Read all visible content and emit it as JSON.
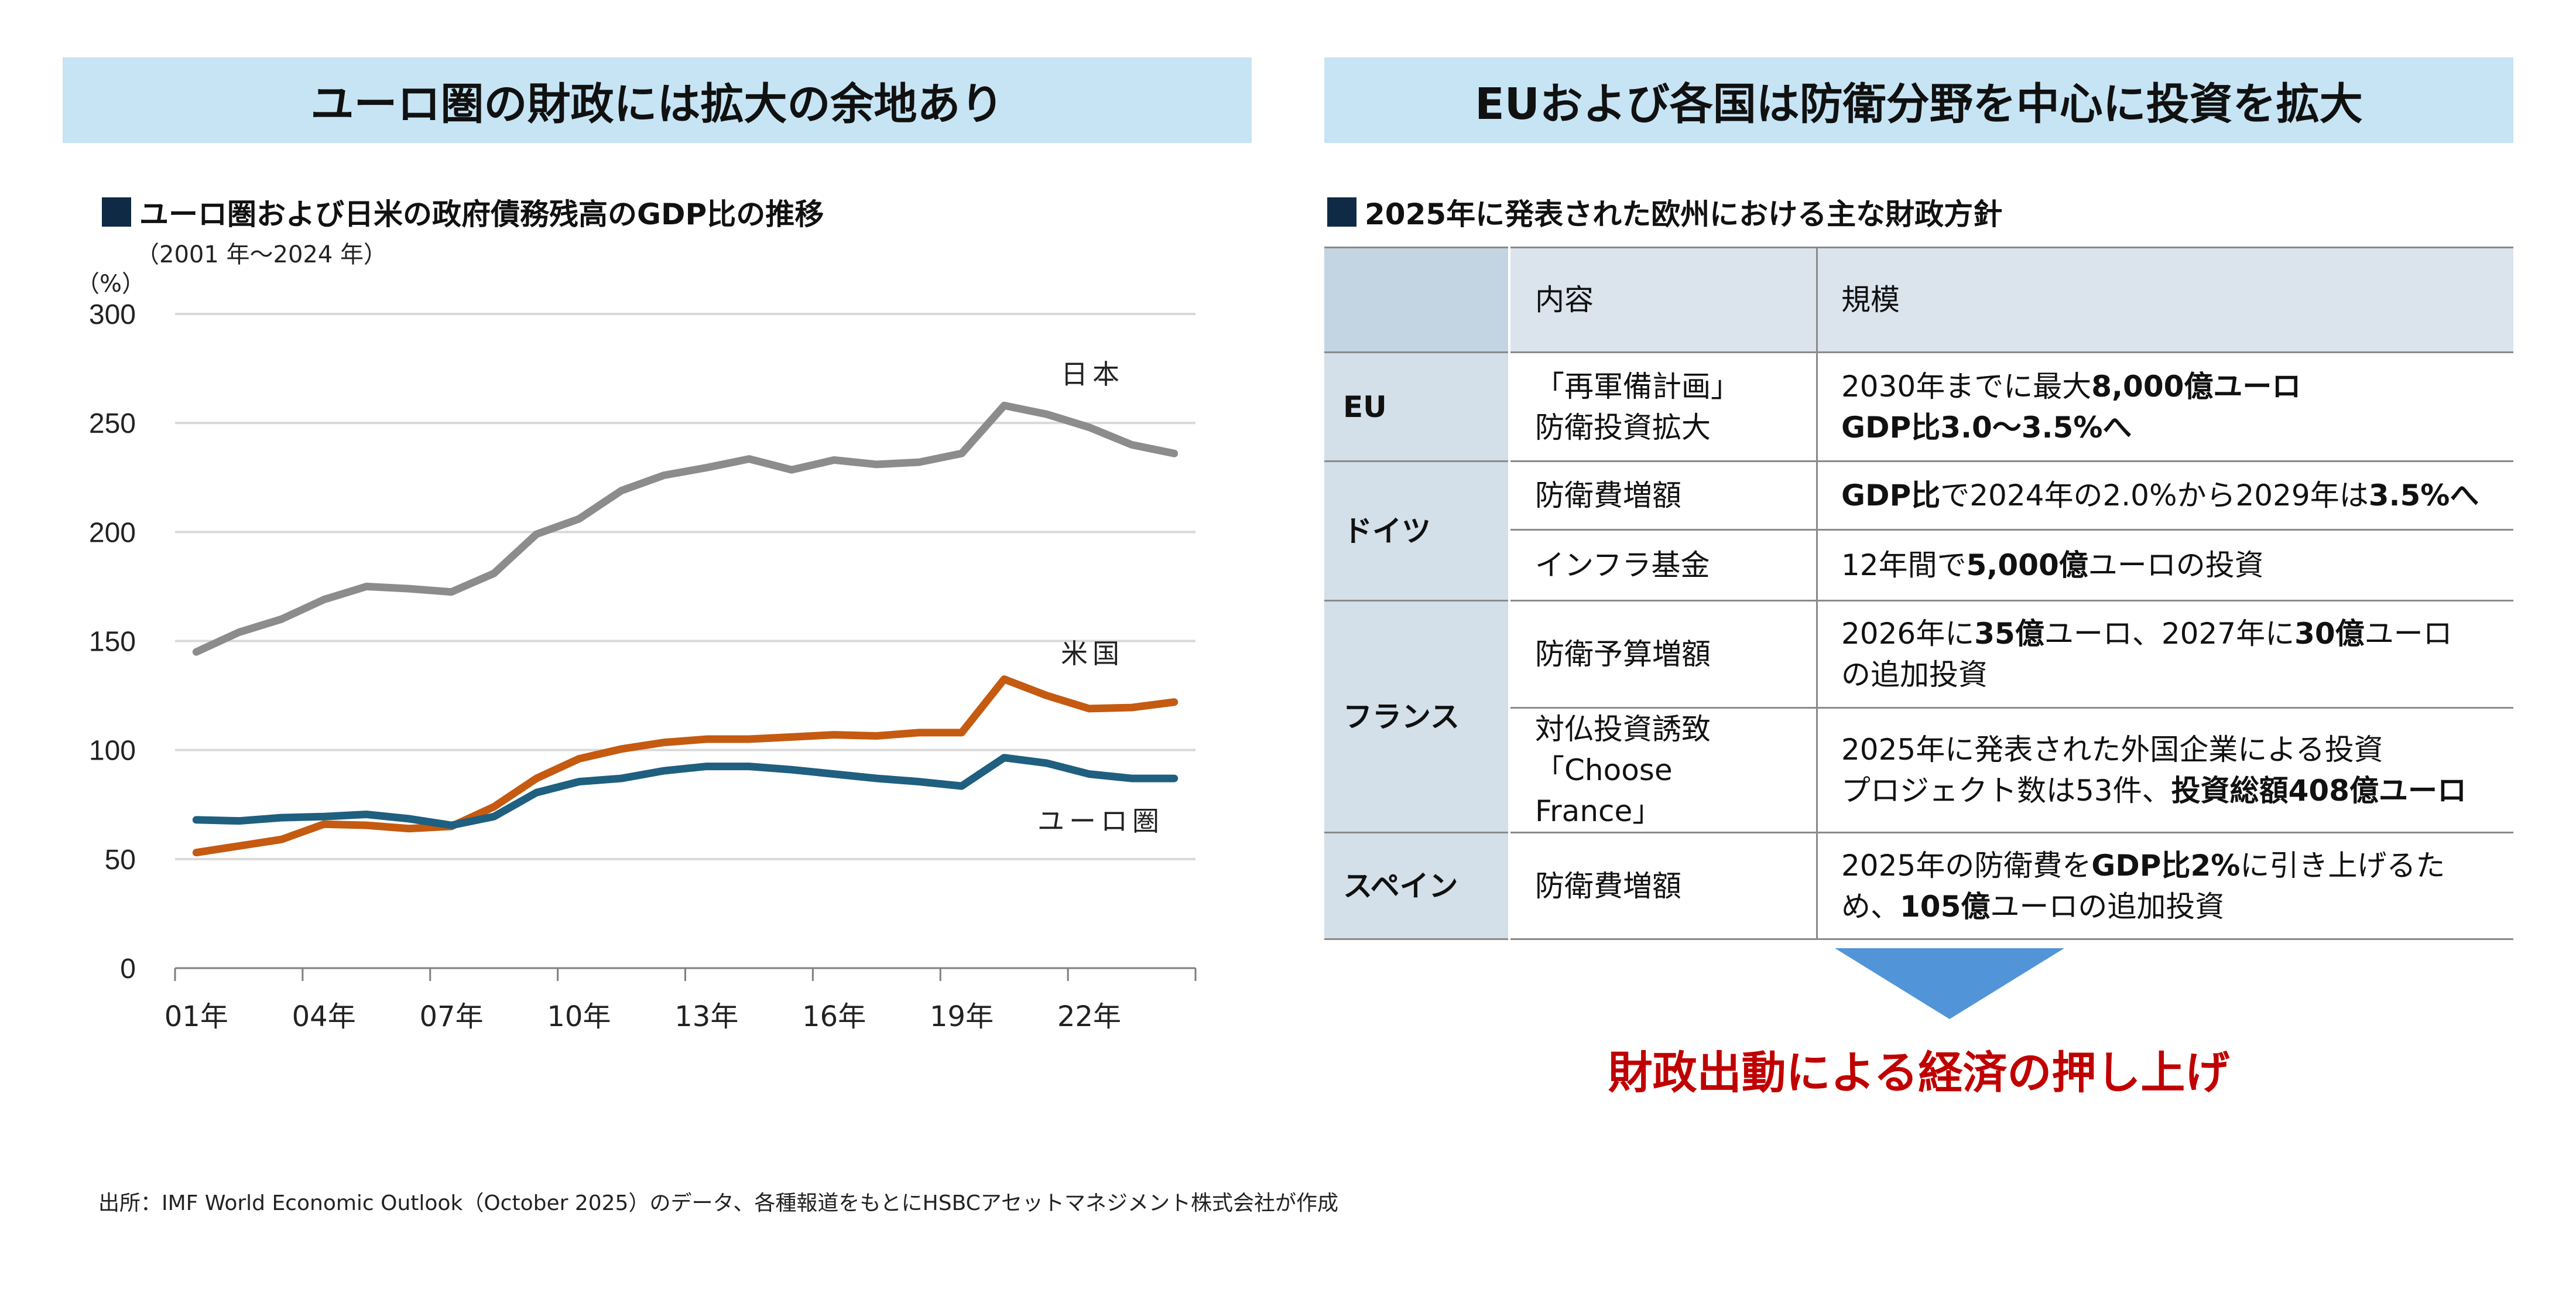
{
  "left": {
    "banner": "ユーロ圏の財政には拡大の余地あり",
    "subtitle": "ユーロ圏および日米の政府債務残高のGDP比の推移",
    "period": "（2001 年～2024 年）"
  },
  "right": {
    "banner": "EUおよび各国は防衛分野を中心に投資を拡大",
    "subtitle": "2025年に発表された欧州における主な財政方針",
    "conclusion": "財政出動による経済の押し上げ"
  },
  "footnote": "出所：IMF World Economic Outlook（October 2025）のデータ、各種報道をもとにHSBCアセットマネジメント株式会社が作成",
  "colors": {
    "japan": "#8c8c8c",
    "us": "#c55a11",
    "euro": "#1f5f7f",
    "banner": "#c6e4f4",
    "arrow": "#5195d8",
    "conclusion": "#c00000"
  },
  "chart_data": {
    "type": "line",
    "unit_label": "（%）",
    "ylim": [
      0,
      300
    ],
    "yticks": [
      0,
      50,
      100,
      150,
      200,
      250,
      300
    ],
    "grid": true,
    "x": [
      2001,
      2002,
      2003,
      2004,
      2005,
      2006,
      2007,
      2008,
      2009,
      2010,
      2011,
      2012,
      2013,
      2014,
      2015,
      2016,
      2017,
      2018,
      2019,
      2020,
      2021,
      2022,
      2023,
      2024
    ],
    "xtick_labels": [
      "01年",
      "04年",
      "07年",
      "10年",
      "13年",
      "16年",
      "19年",
      "22年"
    ],
    "series": [
      {
        "name": "日本",
        "color": "#8c8c8c",
        "values": [
          145,
          154,
          160,
          169,
          175,
          174,
          172.5,
          181,
          199,
          206,
          219,
          226,
          229.5,
          233.5,
          228.5,
          233,
          231,
          232,
          236,
          258,
          254,
          248,
          240,
          236
        ]
      },
      {
        "name": "米国",
        "color": "#c55a11",
        "values": [
          53,
          56,
          59,
          66,
          65.5,
          64,
          65,
          74,
          87,
          96,
          100.5,
          103.5,
          105,
          105,
          106,
          107,
          106.5,
          108,
          108,
          132.5,
          125,
          119,
          119.5,
          122
        ]
      },
      {
        "name": "ユーロ圏",
        "color": "#1f5f7f",
        "values": [
          68,
          67.5,
          69,
          69.5,
          70.5,
          68.5,
          65.5,
          69.5,
          80.5,
          85.5,
          87,
          90.5,
          92.5,
          92.5,
          91,
          89,
          87,
          85.5,
          83.5,
          96.5,
          94,
          89,
          87,
          87
        ]
      }
    ]
  },
  "table": {
    "headers": [
      "",
      "内容",
      "規模"
    ],
    "rows": [
      {
        "region": "EU",
        "span": 1,
        "content": [
          "「再軍備計画」",
          "防衛投資拡大"
        ],
        "scale": [
          [
            {
              "t": "2030年までに最大"
            },
            {
              "t": "8,000億ユーロ",
              "b": true
            }
          ],
          [
            {
              "t": "GDP比3.0～3.5%へ",
              "b": true
            }
          ]
        ]
      },
      {
        "region": "ドイツ",
        "span": 2,
        "content": [
          "防衛費増額"
        ],
        "scale": [
          [
            {
              "t": "GDP比",
              "b": true
            },
            {
              "t": "で2024年の2.0%から2029年は"
            },
            {
              "t": "3.5%へ",
              "b": true
            }
          ]
        ]
      },
      {
        "region": "",
        "span": 0,
        "content": [
          "インフラ基金"
        ],
        "scale": [
          [
            {
              "t": "12年間で"
            },
            {
              "t": "5,000億",
              "b": true
            },
            {
              "t": "ユーロの投資"
            }
          ]
        ]
      },
      {
        "region": "フランス",
        "span": 2,
        "content": [
          "防衛予算増額"
        ],
        "scale": [
          [
            {
              "t": "2026年に"
            },
            {
              "t": "35億",
              "b": true
            },
            {
              "t": "ユーロ、2027年に"
            },
            {
              "t": "30億",
              "b": true
            },
            {
              "t": "ユーロ"
            }
          ],
          [
            {
              "t": "の追加投資"
            }
          ]
        ]
      },
      {
        "region": "",
        "span": 0,
        "content": [
          "対仏投資誘致",
          "「Choose France」"
        ],
        "scale": [
          [
            {
              "t": "2025年に発表された外国企業による投資"
            }
          ],
          [
            {
              "t": "プロジェクト数は53件、"
            },
            {
              "t": "投資総額408億ユーロ",
              "b": true
            }
          ]
        ]
      },
      {
        "region": "スペイン",
        "span": 1,
        "content": [
          "防衛費増額"
        ],
        "scale": [
          [
            {
              "t": "2025年の防衛費を"
            },
            {
              "t": "GDP比2%",
              "b": true
            },
            {
              "t": "に引き上げるた"
            }
          ],
          [
            {
              "t": "め、"
            },
            {
              "t": "105億",
              "b": true
            },
            {
              "t": "ユーロの追加投資"
            }
          ]
        ]
      }
    ]
  }
}
